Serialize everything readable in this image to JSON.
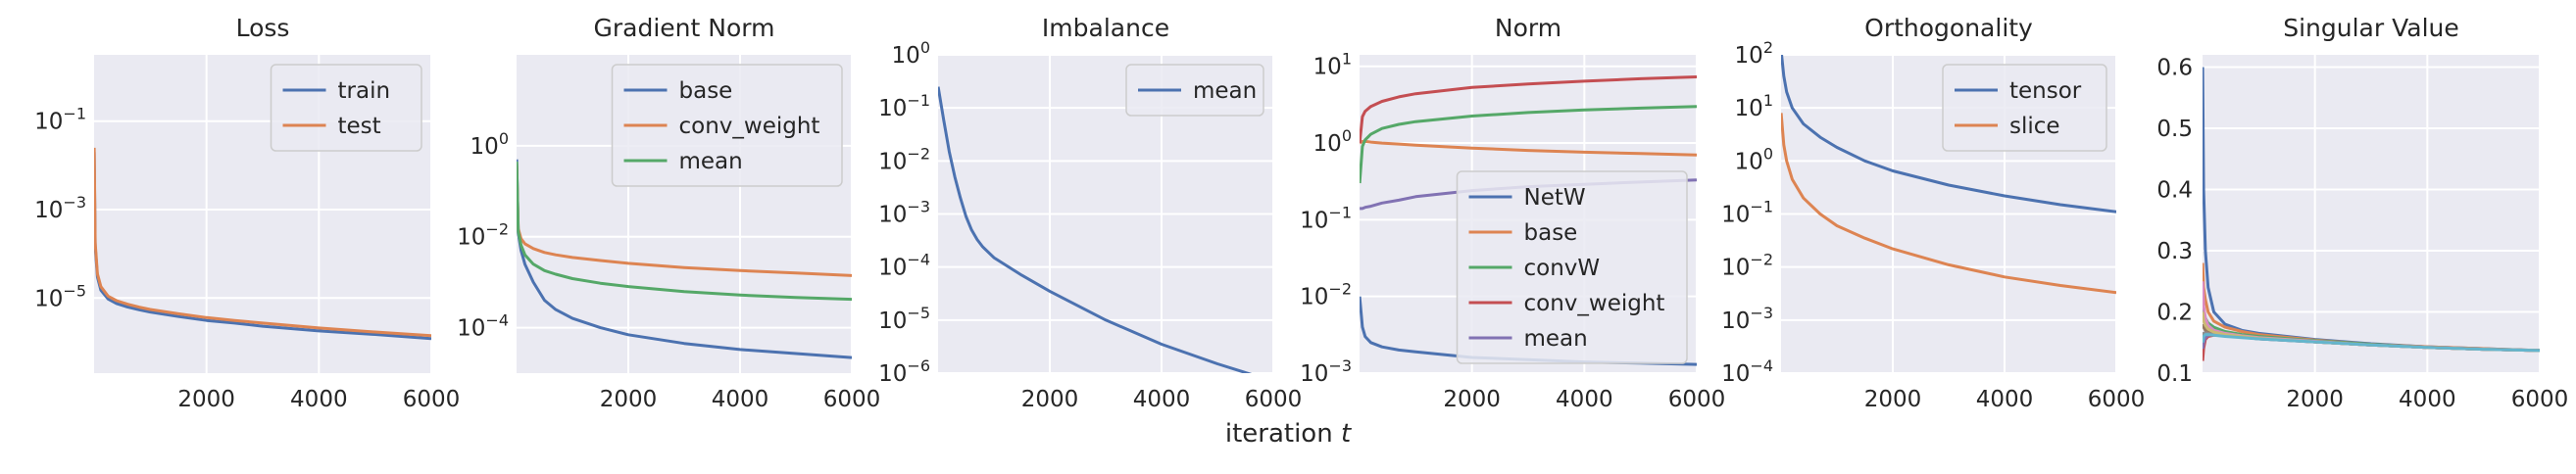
{
  "figure": {
    "xlabel_prefix": "iteration ",
    "xlabel_var": "t"
  },
  "colors": {
    "background": "#eaeaf2",
    "grid": "#ffffff",
    "text": "#262626",
    "blue": "#4c72b0",
    "orange": "#dd8452",
    "green": "#55a868",
    "red": "#c44e52",
    "purple": "#8172b3"
  },
  "chart_data": [
    {
      "type": "line",
      "title": "Loss",
      "yscale": "log",
      "xlim": [
        0,
        6000
      ],
      "ylim_exp": [
        -6.7,
        0.5
      ],
      "xticks": [
        2000,
        4000,
        6000
      ],
      "yticks_exp": [
        -5,
        -3,
        -1
      ],
      "legend": "top-right",
      "series": [
        {
          "name": "train",
          "color": "#4c72b0",
          "x": [
            1,
            20,
            60,
            120,
            250,
            400,
            600,
            800,
            1000,
            1500,
            2000,
            2500,
            3000,
            4000,
            5000,
            6000
          ],
          "y": [
            0.02,
            0.00015,
            3e-05,
            1.5e-05,
            9.5e-06,
            7.5e-06,
            6.2e-06,
            5.4e-06,
            4.8e-06,
            3.8e-06,
            3.1e-06,
            2.7e-06,
            2.3e-06,
            1.8e-06,
            1.5e-06,
            1.2e-06
          ]
        },
        {
          "name": "test",
          "color": "#dd8452",
          "x": [
            1,
            20,
            60,
            120,
            250,
            400,
            600,
            800,
            1000,
            1500,
            2000,
            2500,
            3000,
            4000,
            5000,
            6000
          ],
          "y": [
            0.025,
            0.00018,
            3.5e-05,
            1.8e-05,
            1.1e-05,
            8.7e-06,
            7.2e-06,
            6.2e-06,
            5.5e-06,
            4.4e-06,
            3.6e-06,
            3.1e-06,
            2.7e-06,
            2.1e-06,
            1.7e-06,
            1.4e-06
          ]
        }
      ]
    },
    {
      "type": "line",
      "title": "Gradient Norm",
      "yscale": "log",
      "xlim": [
        0,
        6000
      ],
      "ylim_exp": [
        -5,
        2
      ],
      "xticks": [
        2000,
        4000,
        6000
      ],
      "yticks_exp": [
        -4,
        -2,
        0
      ],
      "legend": "top-right",
      "series": [
        {
          "name": "base",
          "color": "#4c72b0",
          "x": [
            1,
            30,
            80,
            150,
            300,
            500,
            700,
            1000,
            1500,
            2000,
            3000,
            4000,
            5000,
            6000
          ],
          "y": [
            0.5,
            0.012,
            0.005,
            0.0025,
            0.001,
            0.0004,
            0.00025,
            0.00016,
            0.0001,
            7e-05,
            4.5e-05,
            3.3e-05,
            2.7e-05,
            2.2e-05
          ]
        },
        {
          "name": "conv_weight",
          "color": "#dd8452",
          "x": [
            1,
            30,
            80,
            150,
            300,
            500,
            700,
            1000,
            1500,
            2000,
            3000,
            4000,
            5000,
            6000
          ],
          "y": [
            0.4,
            0.015,
            0.009,
            0.007,
            0.0055,
            0.0045,
            0.004,
            0.0035,
            0.003,
            0.0026,
            0.0021,
            0.0018,
            0.0016,
            0.0014
          ]
        },
        {
          "name": "mean",
          "color": "#55a868",
          "x": [
            1,
            30,
            80,
            150,
            300,
            500,
            700,
            1000,
            1500,
            2000,
            3000,
            4000,
            5000,
            6000
          ],
          "y": [
            0.45,
            0.013,
            0.0065,
            0.004,
            0.0025,
            0.0018,
            0.0015,
            0.0012,
            0.00095,
            0.0008,
            0.00062,
            0.00052,
            0.00046,
            0.00042
          ]
        }
      ]
    },
    {
      "type": "line",
      "title": "Imbalance",
      "yscale": "log",
      "xlim": [
        0,
        6000
      ],
      "ylim_exp": [
        -6,
        0
      ],
      "xticks": [
        2000,
        4000,
        6000
      ],
      "yticks_exp": [
        -6,
        -5,
        -4,
        -3,
        -2,
        -1,
        0
      ],
      "legend": "top-right",
      "series": [
        {
          "name": "mean",
          "color": "#4c72b0",
          "x": [
            1,
            100,
            200,
            300,
            400,
            500,
            600,
            700,
            800,
            1000,
            1500,
            2000,
            3000,
            4000,
            5000,
            6000
          ],
          "y": [
            0.25,
            0.06,
            0.015,
            0.005,
            0.002,
            0.0009,
            0.0005,
            0.00033,
            0.00024,
            0.00015,
            7e-05,
            3.5e-05,
            1e-05,
            3.5e-06,
            1.5e-06,
            7e-07
          ]
        }
      ]
    },
    {
      "type": "line",
      "title": "Norm",
      "yscale": "log",
      "xlim": [
        0,
        6000
      ],
      "ylim_exp": [
        -3,
        1.15
      ],
      "xticks": [
        2000,
        4000,
        6000
      ],
      "yticks_exp": [
        -3,
        -2,
        -1,
        0,
        1
      ],
      "legend": "bottom-right",
      "series": [
        {
          "name": "NetW",
          "color": "#4c72b0",
          "x": [
            1,
            50,
            100,
            200,
            400,
            700,
            1000,
            2000,
            3000,
            4000,
            5000,
            6000
          ],
          "y": [
            0.01,
            0.004,
            0.003,
            0.0025,
            0.0022,
            0.002,
            0.0019,
            0.0016,
            0.0015,
            0.0014,
            0.00135,
            0.0013
          ]
        },
        {
          "name": "base",
          "color": "#dd8452",
          "x": [
            1,
            50,
            100,
            200,
            400,
            700,
            1000,
            2000,
            3000,
            4000,
            5000,
            6000
          ],
          "y": [
            1.0,
            1.05,
            1.05,
            1.03,
            1.0,
            0.97,
            0.94,
            0.86,
            0.8,
            0.76,
            0.73,
            0.7
          ]
        },
        {
          "name": "convW",
          "color": "#55a868",
          "x": [
            1,
            50,
            100,
            200,
            400,
            700,
            1000,
            2000,
            3000,
            4000,
            5000,
            6000
          ],
          "y": [
            0.3,
            0.9,
            1.1,
            1.3,
            1.55,
            1.75,
            1.9,
            2.25,
            2.5,
            2.7,
            2.85,
            3.0
          ]
        },
        {
          "name": "conv_weight",
          "color": "#c44e52",
          "x": [
            1,
            50,
            100,
            200,
            400,
            700,
            1000,
            2000,
            3000,
            4000,
            5000,
            6000
          ],
          "y": [
            1.0,
            2.2,
            2.6,
            3.0,
            3.5,
            4.0,
            4.4,
            5.3,
            5.9,
            6.4,
            6.9,
            7.3
          ]
        },
        {
          "name": "mean",
          "color": "#8172b3",
          "x": [
            1,
            50,
            100,
            200,
            400,
            700,
            1000,
            2000,
            3000,
            4000,
            5000,
            6000
          ],
          "y": [
            0.14,
            0.14,
            0.145,
            0.15,
            0.165,
            0.18,
            0.2,
            0.24,
            0.27,
            0.29,
            0.31,
            0.33
          ]
        }
      ]
    },
    {
      "type": "line",
      "title": "Orthogonality",
      "yscale": "log",
      "xlim": [
        0,
        6000
      ],
      "ylim_exp": [
        -4,
        2
      ],
      "xticks": [
        2000,
        4000,
        6000
      ],
      "yticks_exp": [
        -4,
        -3,
        -2,
        -1,
        0,
        1,
        2
      ],
      "legend": "top-right",
      "series": [
        {
          "name": "tensor",
          "color": "#4c72b0",
          "x": [
            1,
            50,
            100,
            200,
            400,
            700,
            1000,
            1500,
            2000,
            3000,
            4000,
            5000,
            6000
          ],
          "y": [
            120,
            40,
            20,
            10,
            5,
            2.8,
            1.8,
            1.0,
            0.65,
            0.35,
            0.22,
            0.15,
            0.11
          ]
        },
        {
          "name": "slice",
          "color": "#dd8452",
          "x": [
            1,
            50,
            100,
            200,
            400,
            700,
            1000,
            1500,
            2000,
            3000,
            4000,
            5000,
            6000
          ],
          "y": [
            8,
            2,
            1.0,
            0.45,
            0.2,
            0.1,
            0.06,
            0.035,
            0.022,
            0.011,
            0.0065,
            0.0045,
            0.0033
          ]
        }
      ]
    },
    {
      "type": "line",
      "title": "Singular Value",
      "yscale": "linear",
      "xlim": [
        0,
        6000
      ],
      "ylim": [
        0.1,
        0.62
      ],
      "xticks": [
        2000,
        4000,
        6000
      ],
      "yticks": [
        0.1,
        0.2,
        0.3,
        0.4,
        0.5,
        0.6
      ],
      "legend": "none",
      "series": [
        {
          "color": "#4c72b0",
          "x": [
            1,
            20,
            50,
            100,
            200,
            400,
            700,
            1000,
            2000,
            3000,
            4000,
            5000,
            6000
          ],
          "y": [
            0.6,
            0.4,
            0.3,
            0.24,
            0.2,
            0.18,
            0.17,
            0.165,
            0.155,
            0.148,
            0.143,
            0.14,
            0.137
          ]
        },
        {
          "color": "#dd8452",
          "x": [
            1,
            20,
            50,
            100,
            200,
            400,
            700,
            1000,
            2000,
            3000,
            4000,
            5000,
            6000
          ],
          "y": [
            0.28,
            0.24,
            0.22,
            0.2,
            0.185,
            0.175,
            0.168,
            0.163,
            0.154,
            0.147,
            0.143,
            0.14,
            0.137
          ]
        },
        {
          "color": "#55a868",
          "x": [
            1,
            20,
            50,
            100,
            200,
            400,
            700,
            1000,
            2000,
            3000,
            4000,
            5000,
            6000
          ],
          "y": [
            0.22,
            0.2,
            0.19,
            0.182,
            0.175,
            0.168,
            0.163,
            0.16,
            0.153,
            0.147,
            0.142,
            0.139,
            0.137
          ]
        },
        {
          "color": "#c44e52",
          "x": [
            1,
            20,
            50,
            100,
            200,
            400,
            700,
            1000,
            2000,
            3000,
            4000,
            5000,
            6000
          ],
          "y": [
            0.12,
            0.14,
            0.155,
            0.16,
            0.162,
            0.161,
            0.159,
            0.157,
            0.151,
            0.146,
            0.142,
            0.139,
            0.137
          ]
        },
        {
          "color": "#8172b3",
          "x": [
            1,
            20,
            50,
            100,
            200,
            400,
            700,
            1000,
            2000,
            3000,
            4000,
            5000,
            6000
          ],
          "y": [
            0.14,
            0.15,
            0.158,
            0.162,
            0.163,
            0.161,
            0.159,
            0.156,
            0.151,
            0.146,
            0.142,
            0.139,
            0.137
          ]
        },
        {
          "color": "#937860",
          "x": [
            1,
            20,
            50,
            100,
            200,
            400,
            700,
            1000,
            2000,
            3000,
            4000,
            5000,
            6000
          ],
          "y": [
            0.18,
            0.175,
            0.17,
            0.168,
            0.165,
            0.162,
            0.16,
            0.157,
            0.151,
            0.146,
            0.142,
            0.139,
            0.137
          ]
        },
        {
          "color": "#da8bc3",
          "x": [
            1,
            20,
            50,
            100,
            200,
            400,
            700,
            1000,
            2000,
            3000,
            4000,
            5000,
            6000
          ],
          "y": [
            0.25,
            0.21,
            0.19,
            0.178,
            0.17,
            0.165,
            0.161,
            0.158,
            0.152,
            0.146,
            0.142,
            0.139,
            0.137
          ]
        },
        {
          "color": "#8c8c8c",
          "x": [
            1,
            20,
            50,
            100,
            200,
            400,
            700,
            1000,
            2000,
            3000,
            4000,
            5000,
            6000
          ],
          "y": [
            0.16,
            0.165,
            0.166,
            0.165,
            0.163,
            0.161,
            0.159,
            0.156,
            0.151,
            0.146,
            0.142,
            0.139,
            0.137
          ]
        },
        {
          "color": "#ccb974",
          "x": [
            1,
            20,
            50,
            100,
            200,
            400,
            700,
            1000,
            2000,
            3000,
            4000,
            5000,
            6000
          ],
          "y": [
            0.2,
            0.185,
            0.178,
            0.172,
            0.167,
            0.163,
            0.16,
            0.157,
            0.151,
            0.146,
            0.142,
            0.139,
            0.137
          ]
        },
        {
          "color": "#64b5cd",
          "x": [
            1,
            20,
            50,
            100,
            200,
            400,
            700,
            1000,
            2000,
            3000,
            4000,
            5000,
            6000
          ],
          "y": [
            0.15,
            0.16,
            0.163,
            0.163,
            0.162,
            0.16,
            0.158,
            0.156,
            0.151,
            0.146,
            0.142,
            0.139,
            0.137
          ]
        }
      ]
    }
  ]
}
